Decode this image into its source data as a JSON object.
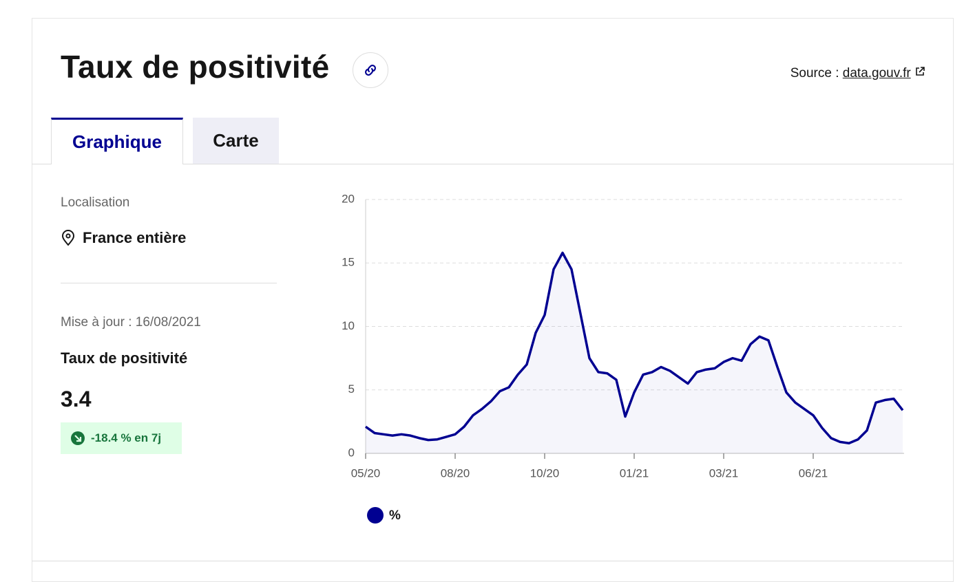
{
  "header": {
    "title": "Taux de positivité",
    "source_label": "Source :",
    "source_link": "data.gouv.fr"
  },
  "tabs": [
    "Graphique",
    "Carte"
  ],
  "panel": {
    "location_label": "Localisation",
    "location": "France entière",
    "updated": "Mise à jour : 16/08/2021",
    "indicator": "Taux de positivité",
    "value": 3.4,
    "change": "-18.4 % en 7j"
  },
  "chart_data": {
    "type": "line",
    "categories": [
      "05/20",
      null,
      null,
      null,
      null,
      null,
      null,
      null,
      null,
      null,
      "08/20",
      null,
      null,
      null,
      null,
      null,
      null,
      null,
      null,
      null,
      "10/20",
      null,
      null,
      null,
      null,
      null,
      null,
      null,
      null,
      null,
      "01/21",
      null,
      null,
      null,
      null,
      null,
      null,
      null,
      null,
      null,
      "03/21",
      null,
      null,
      null,
      null,
      null,
      null,
      null,
      null,
      null,
      "06/21",
      null,
      null,
      null,
      null,
      null,
      null,
      null,
      null,
      null,
      null
    ],
    "series": [
      {
        "name": "%",
        "color": "#000091",
        "values": [
          2.1,
          1.6,
          1.5,
          1.4,
          1.5,
          1.4,
          1.2,
          1.05,
          1.1,
          1.3,
          1.5,
          2.1,
          3.0,
          3.5,
          4.1,
          4.9,
          5.2,
          6.2,
          7.0,
          9.5,
          10.9,
          14.5,
          15.8,
          14.5,
          11.0,
          7.5,
          6.4,
          6.3,
          5.8,
          2.9,
          4.8,
          6.2,
          6.4,
          6.8,
          6.5,
          6.0,
          5.5,
          6.4,
          6.6,
          6.7,
          7.2,
          7.5,
          7.3,
          8.6,
          9.2,
          8.9,
          6.8,
          4.8,
          4.0,
          3.5,
          3.0,
          2.0,
          1.2,
          0.9,
          0.8,
          1.1,
          1.8,
          4.0,
          4.2,
          4.3,
          3.4
        ]
      }
    ],
    "ylim": [
      0,
      20
    ],
    "yticks": [
      0,
      5,
      10,
      15,
      20
    ],
    "grid": true
  }
}
